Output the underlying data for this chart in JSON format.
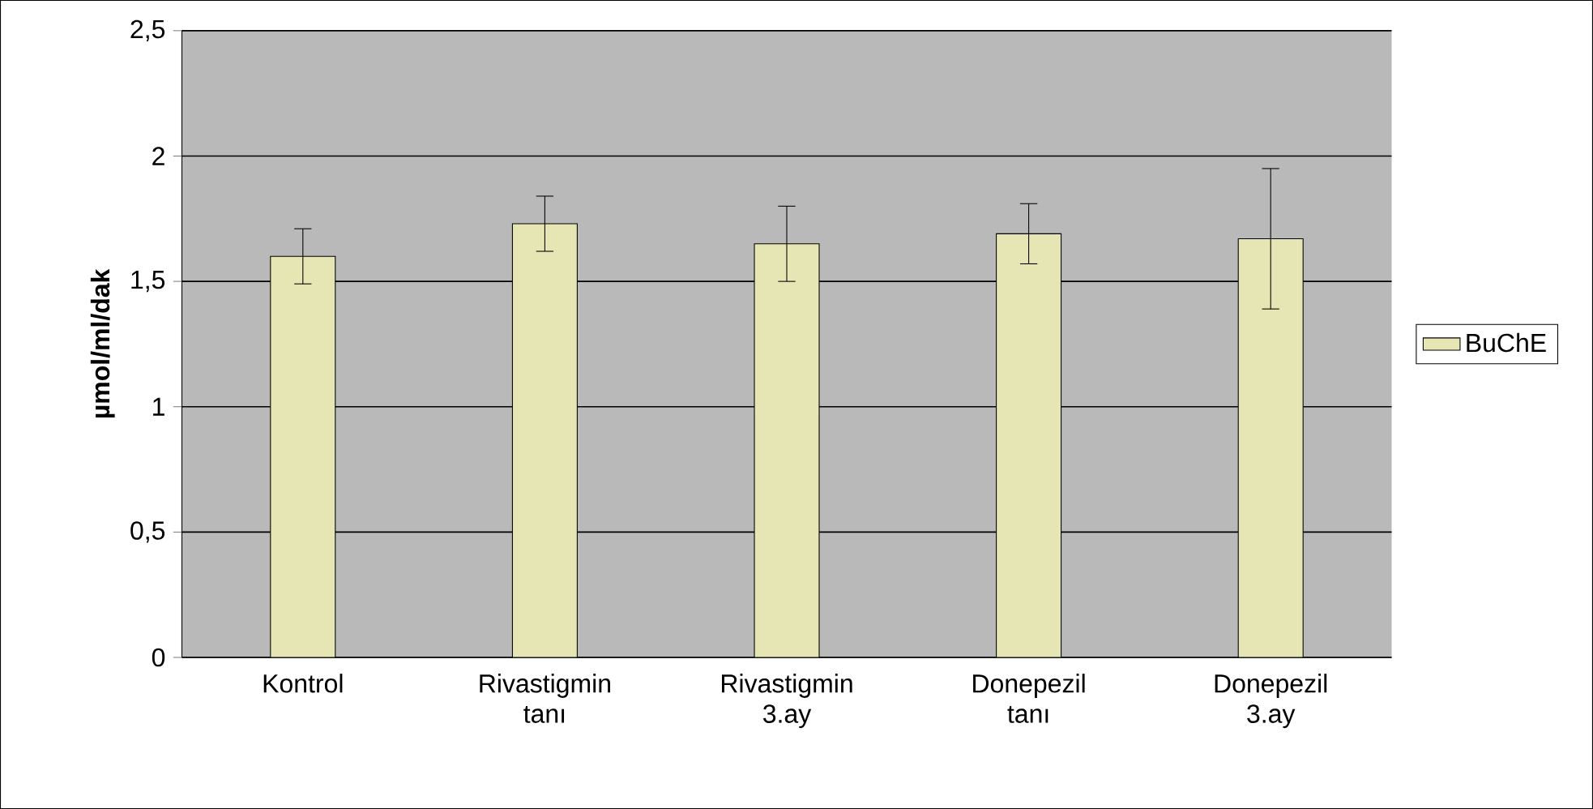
{
  "chart_data": {
    "type": "bar",
    "ylabel": "µmol/ml/dak",
    "categories": [
      "Kontrol",
      "Rivastigmin tanı",
      "Rivastigmin 3.ay",
      "Donepezil tanı",
      "Donepezil 3.ay"
    ],
    "series": [
      {
        "name": "BuChE",
        "color": "#e6e6b4",
        "values": [
          1.6,
          1.73,
          1.65,
          1.69,
          1.67
        ],
        "errors": [
          0.11,
          0.11,
          0.15,
          0.12,
          0.28
        ]
      }
    ],
    "ylim": [
      0,
      2.5
    ],
    "yticks": [
      0,
      {
        "value": 0.5,
        "label": "0,5"
      },
      1,
      {
        "value": 1.5,
        "label": "1,5"
      },
      2,
      {
        "value": 2.5,
        "label": "2,5"
      }
    ],
    "grid": "y",
    "legend": "right"
  }
}
